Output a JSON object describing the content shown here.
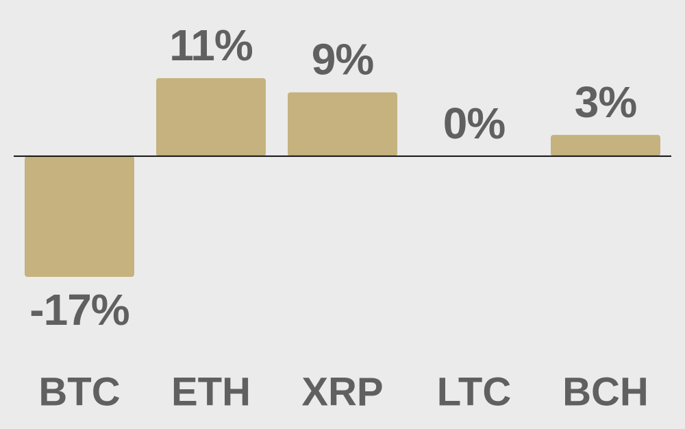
{
  "chart_data": {
    "type": "bar",
    "categories": [
      "BTC",
      "ETH",
      "XRP",
      "LTC",
      "BCH"
    ],
    "values": [
      -17,
      11,
      9,
      0,
      3
    ],
    "value_labels": [
      "-17%",
      "11%",
      "9%",
      "0%",
      "3%"
    ],
    "color": "#c5b27e"
  }
}
